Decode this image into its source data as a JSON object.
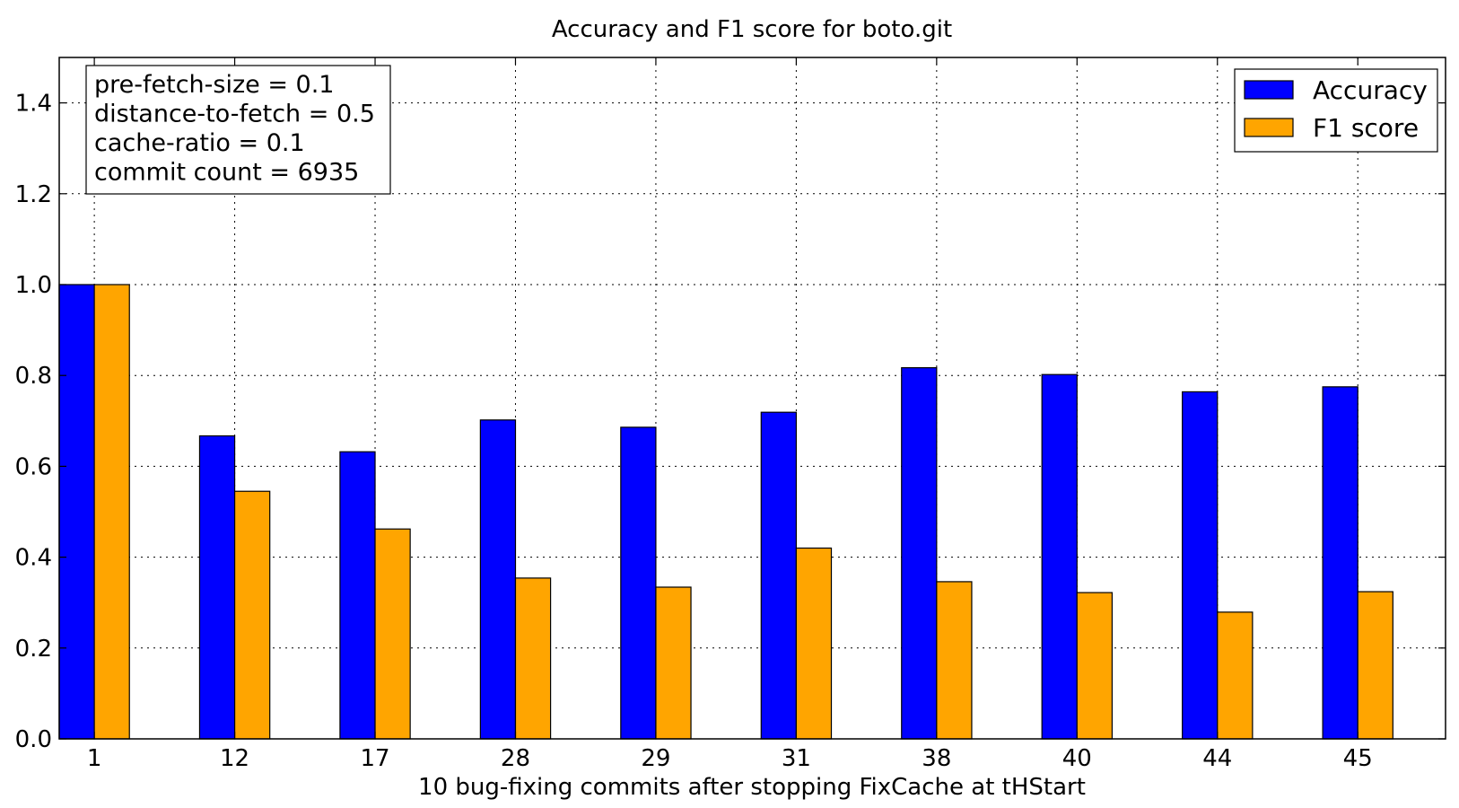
{
  "chart_data": {
    "type": "bar",
    "title": "Accuracy and F1 score for boto.git",
    "xlabel": "10 bug-fixing commits after stopping FixCache at tHStart",
    "ylabel": "",
    "categories": [
      "1",
      "12",
      "17",
      "28",
      "29",
      "31",
      "38",
      "40",
      "44",
      "45"
    ],
    "series": [
      {
        "name": "Accuracy",
        "color": "#0000ff",
        "values": [
          1.0,
          0.667,
          0.632,
          0.702,
          0.686,
          0.719,
          0.817,
          0.802,
          0.764,
          0.775
        ]
      },
      {
        "name": "F1 score",
        "color": "#ffa500",
        "values": [
          1.0,
          0.545,
          0.462,
          0.354,
          0.334,
          0.42,
          0.346,
          0.322,
          0.279,
          0.324
        ]
      }
    ],
    "ylim": [
      0.0,
      1.5
    ],
    "yticks": [
      "0.0",
      "0.2",
      "0.4",
      "0.6",
      "0.8",
      "1.0",
      "1.2",
      "1.4"
    ],
    "grid": true,
    "legend_position": "top-right",
    "annotation": {
      "position": "top-left",
      "lines": [
        "pre-fetch-size = 0.1",
        "distance-to-fetch = 0.5",
        "cache-ratio = 0.1",
        "commit count = 6935"
      ]
    }
  }
}
